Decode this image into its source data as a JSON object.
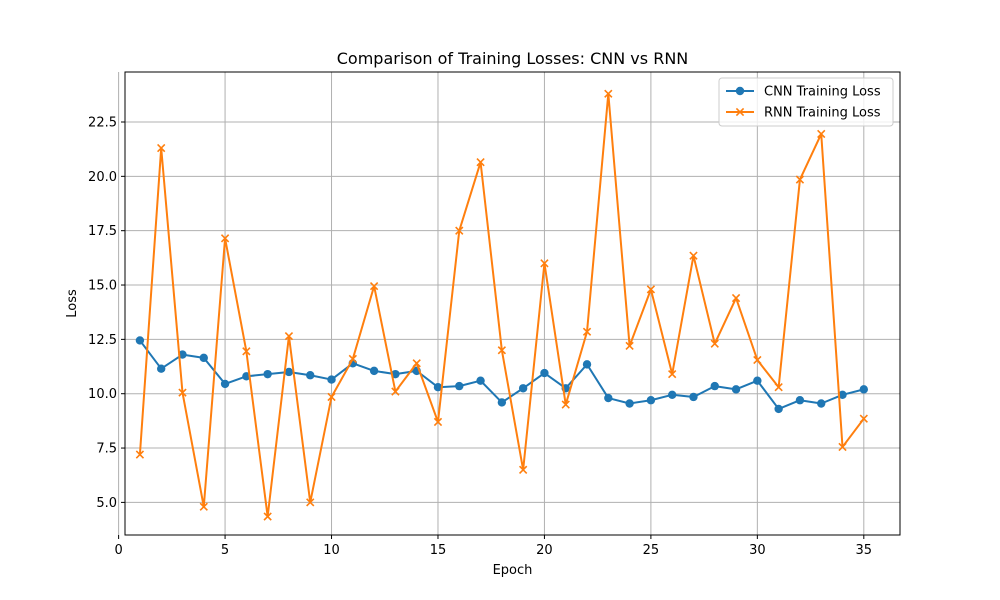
{
  "chart_data": {
    "type": "line",
    "title": "Comparison of Training Losses: CNN vs RNN",
    "xlabel": "Epoch",
    "ylabel": "Loss",
    "xlim": [
      0.3,
      36.7
    ],
    "ylim": [
      3.5,
      24.8
    ],
    "xticks": [
      0,
      5,
      10,
      15,
      20,
      25,
      30,
      35
    ],
    "yticks": [
      5.0,
      7.5,
      10.0,
      12.5,
      15.0,
      17.5,
      20.0,
      22.5
    ],
    "grid": true,
    "legend_position": "top-right",
    "x": [
      1,
      2,
      3,
      4,
      5,
      6,
      7,
      8,
      9,
      10,
      11,
      12,
      13,
      14,
      15,
      16,
      17,
      18,
      19,
      20,
      21,
      22,
      23,
      24,
      25,
      26,
      27,
      28,
      29,
      30,
      31,
      32,
      33,
      34,
      35
    ],
    "series": [
      {
        "name": "CNN Training Loss",
        "color": "#1f77b4",
        "marker": "circle",
        "values": [
          12.45,
          11.15,
          11.8,
          11.65,
          10.45,
          10.8,
          10.9,
          11.0,
          10.85,
          10.65,
          11.4,
          11.05,
          10.9,
          11.05,
          10.3,
          10.35,
          10.6,
          9.6,
          10.25,
          10.95,
          10.25,
          11.35,
          9.8,
          9.55,
          9.7,
          9.95,
          9.85,
          10.35,
          10.2,
          10.6,
          9.3,
          9.7,
          9.55,
          9.95,
          10.2
        ]
      },
      {
        "name": "RNN Training Loss",
        "color": "#ff7f0e",
        "marker": "x",
        "values": [
          7.2,
          21.3,
          10.05,
          4.8,
          17.15,
          11.95,
          4.35,
          12.65,
          5.0,
          9.85,
          11.6,
          14.95,
          10.1,
          11.4,
          8.7,
          17.5,
          20.65,
          12.0,
          6.5,
          16.0,
          9.5,
          12.85,
          23.8,
          12.2,
          14.8,
          10.9,
          16.35,
          12.3,
          14.4,
          11.55,
          10.3,
          19.85,
          21.95,
          7.55,
          8.85
        ]
      }
    ]
  }
}
